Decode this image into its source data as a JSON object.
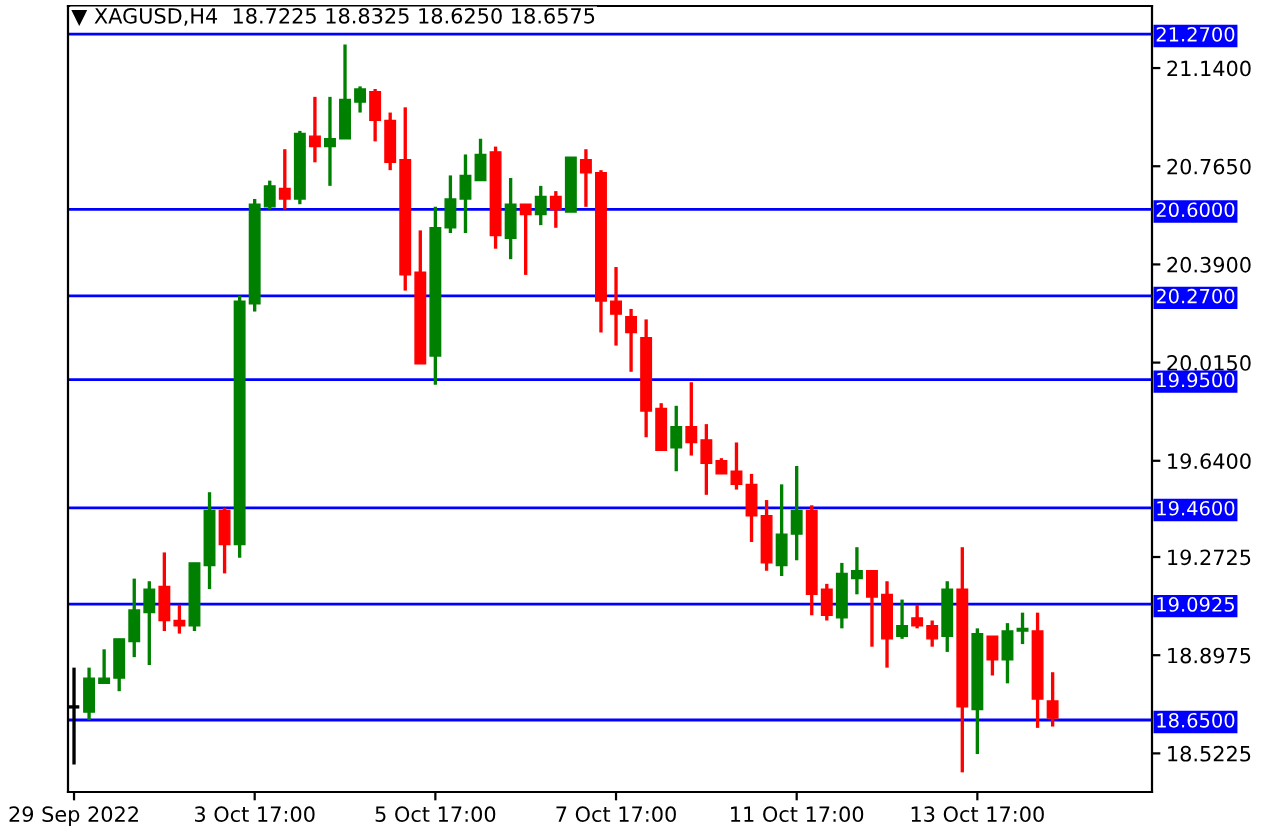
{
  "chart_data": {
    "type": "candlestick",
    "title": "▼ XAGUSD,H4  18.7225 18.8325 18.6250 18.6575",
    "categories": [
      "29 Sep 2022",
      null,
      null,
      null,
      null,
      null,
      null,
      null,
      null,
      null,
      null,
      null,
      "3 Oct 17:00",
      null,
      null,
      null,
      null,
      null,
      null,
      null,
      null,
      null,
      null,
      null,
      "5 Oct 17:00",
      null,
      null,
      null,
      null,
      null,
      null,
      null,
      null,
      null,
      null,
      null,
      "7 Oct 17:00",
      null,
      null,
      null,
      null,
      null,
      null,
      null,
      null,
      null,
      null,
      null,
      "11 Oct 17:00",
      null,
      null,
      null,
      null,
      null,
      null,
      null,
      null,
      null,
      null,
      null,
      "13 Oct 17:00",
      null,
      null,
      null,
      null,
      null
    ],
    "ohlc": [
      [
        18.7,
        18.85,
        18.48,
        18.7
      ],
      [
        18.68,
        18.85,
        18.65,
        18.81
      ],
      [
        18.79,
        18.92,
        18.79,
        18.81
      ],
      [
        18.81,
        18.96,
        18.76,
        18.96
      ],
      [
        18.95,
        19.19,
        18.89,
        19.07
      ],
      [
        19.06,
        19.18,
        18.86,
        19.15
      ],
      [
        19.16,
        19.29,
        18.99,
        19.03
      ],
      [
        19.03,
        19.09,
        18.98,
        19.01
      ],
      [
        19.01,
        19.25,
        18.99,
        19.25
      ],
      [
        19.24,
        19.52,
        19.15,
        19.45
      ],
      [
        19.45,
        19.46,
        19.21,
        19.32
      ],
      [
        19.32,
        20.27,
        19.27,
        20.25
      ],
      [
        20.24,
        20.64,
        20.21,
        20.62
      ],
      [
        20.61,
        20.71,
        20.6,
        20.69
      ],
      [
        20.68,
        20.83,
        20.6,
        20.64
      ],
      [
        20.64,
        20.9,
        20.62,
        20.89
      ],
      [
        20.88,
        21.03,
        20.78,
        20.84
      ],
      [
        20.84,
        21.03,
        20.69,
        20.87
      ],
      [
        20.87,
        21.23,
        20.87,
        21.02
      ],
      [
        21.01,
        21.07,
        20.97,
        21.06
      ],
      [
        21.05,
        21.06,
        20.86,
        20.94
      ],
      [
        20.94,
        20.97,
        20.75,
        20.78
      ],
      [
        20.79,
        20.99,
        20.29,
        20.35
      ],
      [
        20.36,
        20.52,
        20.01,
        20.01
      ],
      [
        20.04,
        20.61,
        19.93,
        20.53
      ],
      [
        20.53,
        20.73,
        20.51,
        20.64
      ],
      [
        20.64,
        20.81,
        20.51,
        20.73
      ],
      [
        20.71,
        20.87,
        20.71,
        20.81
      ],
      [
        20.82,
        20.84,
        20.45,
        20.5
      ],
      [
        20.49,
        20.72,
        20.41,
        20.62
      ],
      [
        20.62,
        20.62,
        20.35,
        20.58
      ],
      [
        20.58,
        20.69,
        20.54,
        20.65
      ],
      [
        20.65,
        20.67,
        20.53,
        20.6
      ],
      [
        20.59,
        20.8,
        20.59,
        20.8
      ],
      [
        20.79,
        20.83,
        20.61,
        20.74
      ],
      [
        20.74,
        20.75,
        20.13,
        20.25
      ],
      [
        20.25,
        20.38,
        20.08,
        20.2
      ],
      [
        20.19,
        20.22,
        19.98,
        20.13
      ],
      [
        20.11,
        20.18,
        19.73,
        19.83
      ],
      [
        19.84,
        19.86,
        19.68,
        19.68
      ],
      [
        19.69,
        19.85,
        19.6,
        19.77
      ],
      [
        19.77,
        19.94,
        19.66,
        19.71
      ],
      [
        19.72,
        19.78,
        19.51,
        19.63
      ],
      [
        19.64,
        19.65,
        19.59,
        19.59
      ],
      [
        19.6,
        19.71,
        19.53,
        19.55
      ],
      [
        19.55,
        19.59,
        19.33,
        19.43
      ],
      [
        19.43,
        19.49,
        19.22,
        19.25
      ],
      [
        19.24,
        19.55,
        19.2,
        19.36
      ],
      [
        19.36,
        19.62,
        19.26,
        19.45
      ],
      [
        19.45,
        19.47,
        19.05,
        19.13
      ],
      [
        19.15,
        19.17,
        19.03,
        19.05
      ],
      [
        19.04,
        19.25,
        19.0,
        19.21
      ],
      [
        19.19,
        19.31,
        19.13,
        19.22
      ],
      [
        19.22,
        19.22,
        18.93,
        19.12
      ],
      [
        19.13,
        19.18,
        18.85,
        18.96
      ],
      [
        18.97,
        19.11,
        18.96,
        19.01
      ],
      [
        19.04,
        19.09,
        19.0,
        19.01
      ],
      [
        19.01,
        19.03,
        18.93,
        18.96
      ],
      [
        18.97,
        19.18,
        18.91,
        19.15
      ],
      [
        19.15,
        19.31,
        18.45,
        18.7
      ],
      [
        18.69,
        19.0,
        18.52,
        18.98
      ],
      [
        18.97,
        18.97,
        18.82,
        18.88
      ],
      [
        18.88,
        19.02,
        18.79,
        18.99
      ],
      [
        18.99,
        19.06,
        18.94,
        19.0
      ],
      [
        18.99,
        19.06,
        18.62,
        18.73
      ],
      [
        18.7225,
        18.8325,
        18.625,
        18.6575
      ]
    ],
    "colors": [
      "#000000",
      "#008000",
      "#008000",
      "#008000",
      "#008000",
      "#008000",
      "#ff0000",
      "#ff0000",
      "#008000",
      "#008000",
      "#ff0000",
      "#008000",
      "#008000",
      "#008000",
      "#ff0000",
      "#008000",
      "#ff0000",
      "#008000",
      "#008000",
      "#008000",
      "#ff0000",
      "#ff0000",
      "#ff0000",
      "#ff0000",
      "#008000",
      "#008000",
      "#008000",
      "#008000",
      "#ff0000",
      "#008000",
      "#ff0000",
      "#008000",
      "#ff0000",
      "#008000",
      "#ff0000",
      "#ff0000",
      "#ff0000",
      "#ff0000",
      "#ff0000",
      "#ff0000",
      "#008000",
      "#ff0000",
      "#ff0000",
      "#ff0000",
      "#ff0000",
      "#ff0000",
      "#ff0000",
      "#008000",
      "#008000",
      "#ff0000",
      "#ff0000",
      "#008000",
      "#008000",
      "#ff0000",
      "#ff0000",
      "#008000",
      "#ff0000",
      "#ff0000",
      "#008000",
      "#ff0000",
      "#008000",
      "#ff0000",
      "#008000",
      "#008000",
      "#ff0000",
      "#ff0000"
    ],
    "ylim": [
      18.375,
      21.377
    ],
    "yticks": [
      {
        "value": 21.14,
        "label": "21.1400"
      },
      {
        "value": 20.765,
        "label": "20.7650"
      },
      {
        "value": 20.39,
        "label": "20.3900"
      },
      {
        "value": 20.015,
        "label": "20.0150"
      },
      {
        "value": 19.64,
        "label": "19.6400"
      },
      19.2725,
      18.8975,
      18.5225
    ],
    "ref_lines": [
      {
        "axis": "y",
        "value": 21.27,
        "label": "21.2700",
        "color": "#0000ff"
      },
      {
        "axis": "y",
        "value": 20.6,
        "label": "20.6000",
        "color": "#0000ff"
      },
      {
        "axis": "y",
        "value": 20.27,
        "label": "20.2700",
        "color": "#0000ff"
      },
      {
        "axis": "y",
        "value": 19.95,
        "label": "19.9500",
        "color": "#0000ff"
      },
      {
        "axis": "y",
        "value": 19.46,
        "label": "19.4600",
        "color": "#0000ff"
      },
      {
        "axis": "y",
        "value": 19.0925,
        "label": "19.0925",
        "color": "#0000ff"
      },
      {
        "axis": "y",
        "value": 18.65,
        "label": "18.6500",
        "color": "#0000ff"
      }
    ],
    "grid": false,
    "legend": false
  }
}
